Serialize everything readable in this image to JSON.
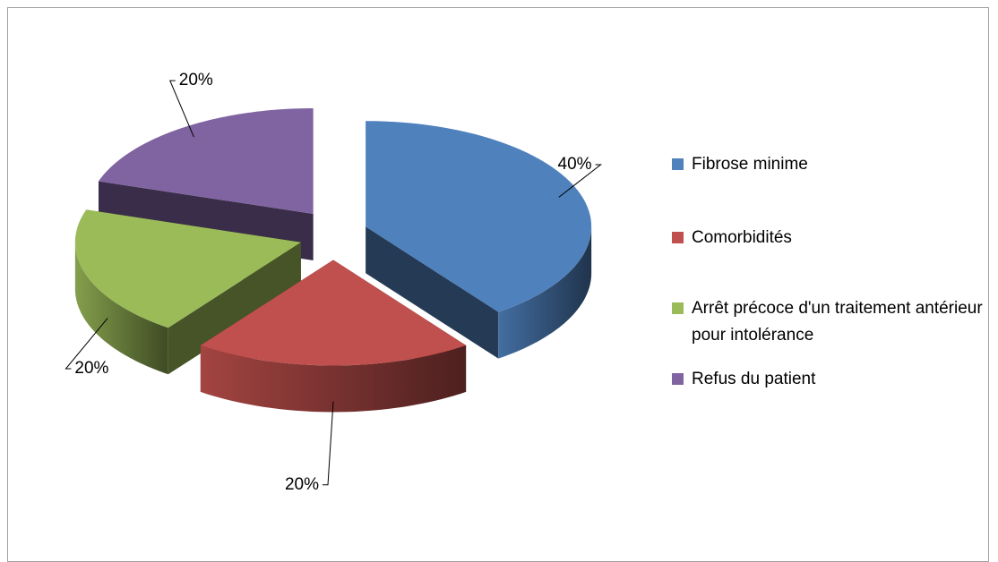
{
  "chart_data": {
    "type": "pie",
    "categories": [
      "Fibrose minime",
      "Comorbidités",
      "Arrêt précoce d'un traitement antérieur pour intolérance",
      "Refus du patient"
    ],
    "values": [
      40,
      20,
      20,
      20
    ],
    "value_labels": [
      "40%",
      "20%",
      "20%",
      "20%"
    ],
    "colors": [
      "#4f81bd",
      "#c0504d",
      "#9bbb59",
      "#8064a2"
    ],
    "legend": "right"
  }
}
